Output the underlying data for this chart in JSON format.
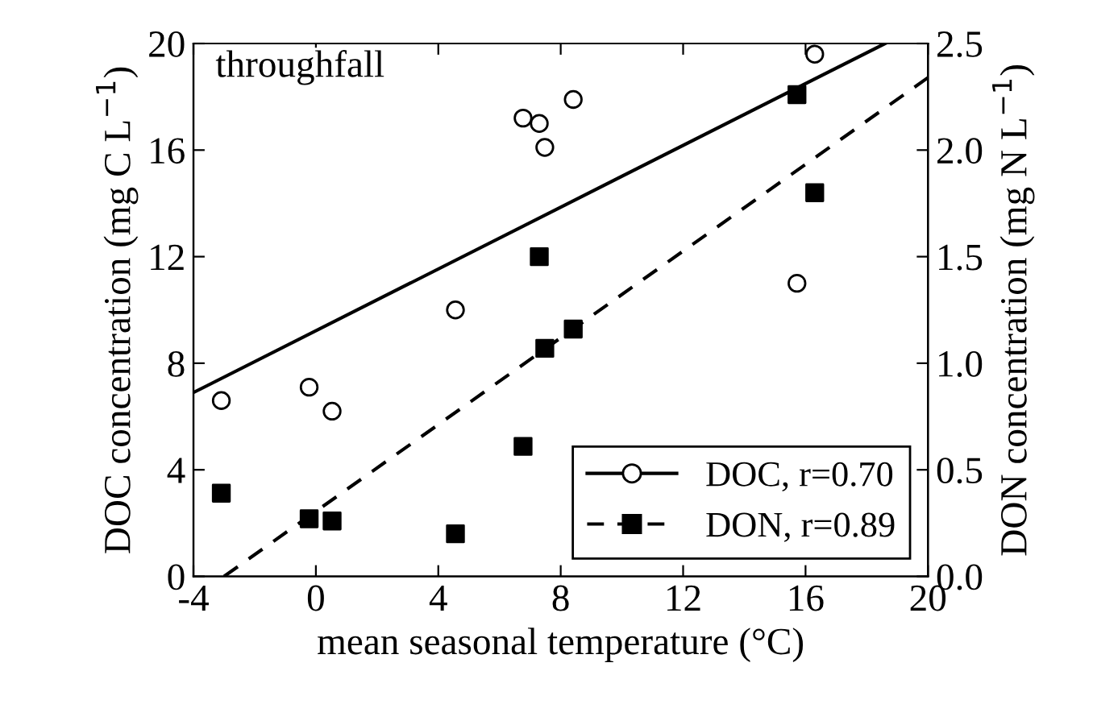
{
  "chart_data": {
    "type": "scatter",
    "xlabel": "mean seasonal temperature (°C)",
    "ylabel": "DOC concentration (mg C L$^{−1}$)",
    "y2label": "DON concentration (mg N L$^{−1}$)",
    "annotations": [
      "throughfall"
    ],
    "xlim": [
      -4,
      20
    ],
    "xticks": [
      -4,
      0,
      4,
      8,
      12,
      16,
      20
    ],
    "ylim": [
      0,
      20
    ],
    "yticks": [
      0,
      4,
      8,
      12,
      16,
      20
    ],
    "y2lim": [
      0,
      2.5
    ],
    "y2ticks": [
      {
        "value": 0,
        "label": "0.0"
      },
      0.5,
      {
        "value": 1,
        "label": "1.0"
      },
      1.5,
      {
        "value": 2,
        "label": "2.0"
      },
      2.5
    ],
    "legend": "bottom right",
    "grid": false,
    "series": [
      {
        "name": "DOC, r=0.70",
        "marker": "circle",
        "color": "#000000",
        "x": [
          -3.09,
          -0.22,
          0.53,
          4.56,
          6.77,
          7.3,
          7.48,
          8.41,
          15.72,
          16.3
        ],
        "values": [
          6.6,
          7.1,
          6.2,
          10.0,
          17.2,
          17.0,
          16.1,
          17.9,
          11.0,
          19.6
        ]
      },
      {
        "type": "line",
        "line_style": "solid",
        "color": "#000000",
        "x": [
          -4,
          18.6
        ],
        "values": [
          6.9,
          20
        ]
      },
      {
        "name": "DON, r=0.89",
        "marker": "square",
        "color": "#000000",
        "axis": "y2",
        "x": [
          -3.09,
          -0.22,
          0.53,
          4.56,
          6.77,
          7.3,
          7.48,
          8.41,
          15.72,
          16.3
        ],
        "values": [
          0.39,
          0.27,
          0.26,
          0.2,
          0.61,
          1.5,
          1.07,
          1.16,
          2.26,
          1.8
        ]
      },
      {
        "type": "line",
        "line_style": "dashed",
        "color": "#000000",
        "axis": "y2",
        "x": [
          -3.0,
          20
        ],
        "values": [
          0,
          2.34
        ]
      }
    ]
  }
}
